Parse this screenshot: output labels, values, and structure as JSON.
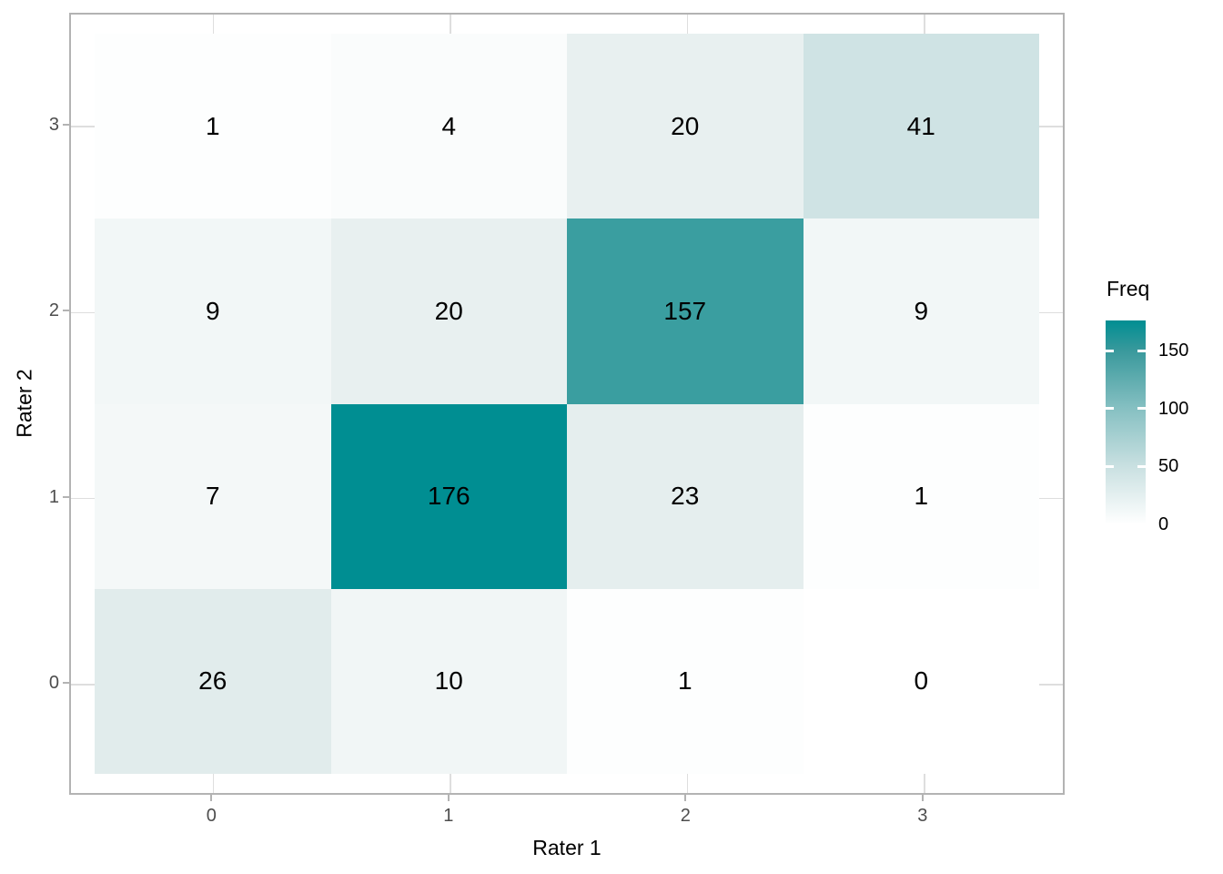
{
  "figure": {
    "bg": "#FFFFFF"
  },
  "x_axis": {
    "title": "Rater 1",
    "tick_labels": [
      "0",
      "1",
      "2",
      "3"
    ]
  },
  "y_axis": {
    "title": "Rater 2",
    "tick_labels": [
      "3",
      "2",
      "1",
      "0"
    ]
  },
  "legend": {
    "title": "Freq",
    "tick_labels": [
      "150",
      "100",
      "50",
      "0"
    ]
  },
  "colors": {
    "background": "#FFFFFF",
    "panel_border": "#B3B3B3",
    "gridline": "#DEDEDE",
    "tick_mark": "#B3B3B3",
    "axis_text": "#4D4D4D",
    "text": "#000000",
    "legend_gradient_stops": [
      "#FFFFFF",
      "#C9E0E1",
      "#86C0C2",
      "#39999C",
      "#008E92"
    ]
  },
  "chart_data": {
    "type": "heatmap",
    "title": "",
    "xlabel": "Rater 1",
    "ylabel": "Rater 2",
    "legend_title": "Freq",
    "x": [
      0,
      1,
      2,
      3
    ],
    "y": [
      0,
      1,
      2,
      3
    ],
    "fill_limits": [
      0,
      176
    ],
    "legend_breaks": [
      150,
      100,
      50,
      0
    ],
    "fill_gradient": {
      "low": "#FFFFFF",
      "high": "#008E92"
    },
    "rows": [
      {
        "y": 3,
        "values": [
          1,
          4,
          20,
          41
        ],
        "colors": [
          "#FDFEFE",
          "#FAFCFC",
          "#E8F0F0",
          "#CFE3E4"
        ]
      },
      {
        "y": 2,
        "values": [
          9,
          20,
          157,
          9
        ],
        "colors": [
          "#F2F7F7",
          "#E8F0F0",
          "#3A9EA0",
          "#F2F7F7"
        ]
      },
      {
        "y": 1,
        "values": [
          7,
          176,
          23,
          1
        ],
        "colors": [
          "#F4F8F8",
          "#008E92",
          "#E5EEEE",
          "#FDFEFE"
        ]
      },
      {
        "y": 0,
        "values": [
          26,
          10,
          1,
          0
        ],
        "colors": [
          "#E1ECEC",
          "#F1F6F6",
          "#FDFEFE",
          "#FFFFFF"
        ]
      }
    ]
  }
}
